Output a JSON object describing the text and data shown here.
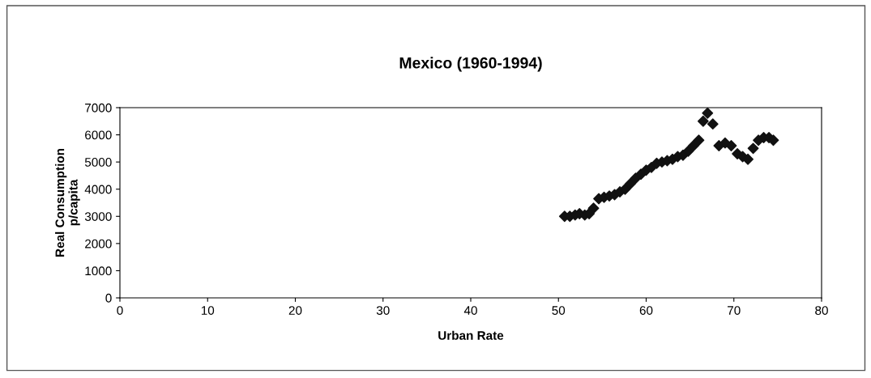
{
  "chart_data": {
    "type": "scatter",
    "title": "Mexico (1960-1994)",
    "xlabel": "Urban Rate",
    "ylabel": "Real Consumption\np/capita",
    "x": [
      50.7,
      51.3,
      51.9,
      52.4,
      53.0,
      53.5,
      54.0,
      54.6,
      55.2,
      55.8,
      56.4,
      57.0,
      57.6,
      58.2,
      58.8,
      59.4,
      60.0,
      60.6,
      61.2,
      61.8,
      62.4,
      63.0,
      63.6,
      64.2,
      64.8,
      65.4,
      66.0,
      66.5,
      67.0,
      67.6,
      68.3,
      69.0,
      69.7,
      70.4,
      71.0,
      71.6,
      72.2,
      72.8,
      73.4,
      74.0,
      74.5
    ],
    "values": [
      3000,
      3000,
      3050,
      3100,
      3050,
      3100,
      3300,
      3650,
      3700,
      3750,
      3800,
      3900,
      4000,
      4200,
      4400,
      4550,
      4700,
      4800,
      4950,
      5000,
      5050,
      5100,
      5200,
      5250,
      5400,
      5600,
      5800,
      6500,
      6800,
      6400,
      5600,
      5700,
      5600,
      5300,
      5200,
      5100,
      5500,
      5800,
      5900,
      5900,
      5800
    ],
    "color": "#111111",
    "marker": "diamond",
    "grid": false,
    "xlim": [
      0,
      80
    ],
    "xticks": [
      0,
      10,
      20,
      30,
      40,
      50,
      60,
      70,
      80
    ],
    "ylim": [
      0,
      7000
    ],
    "yticks": [
      0,
      1000,
      2000,
      3000,
      4000,
      5000,
      6000,
      7000
    ]
  }
}
